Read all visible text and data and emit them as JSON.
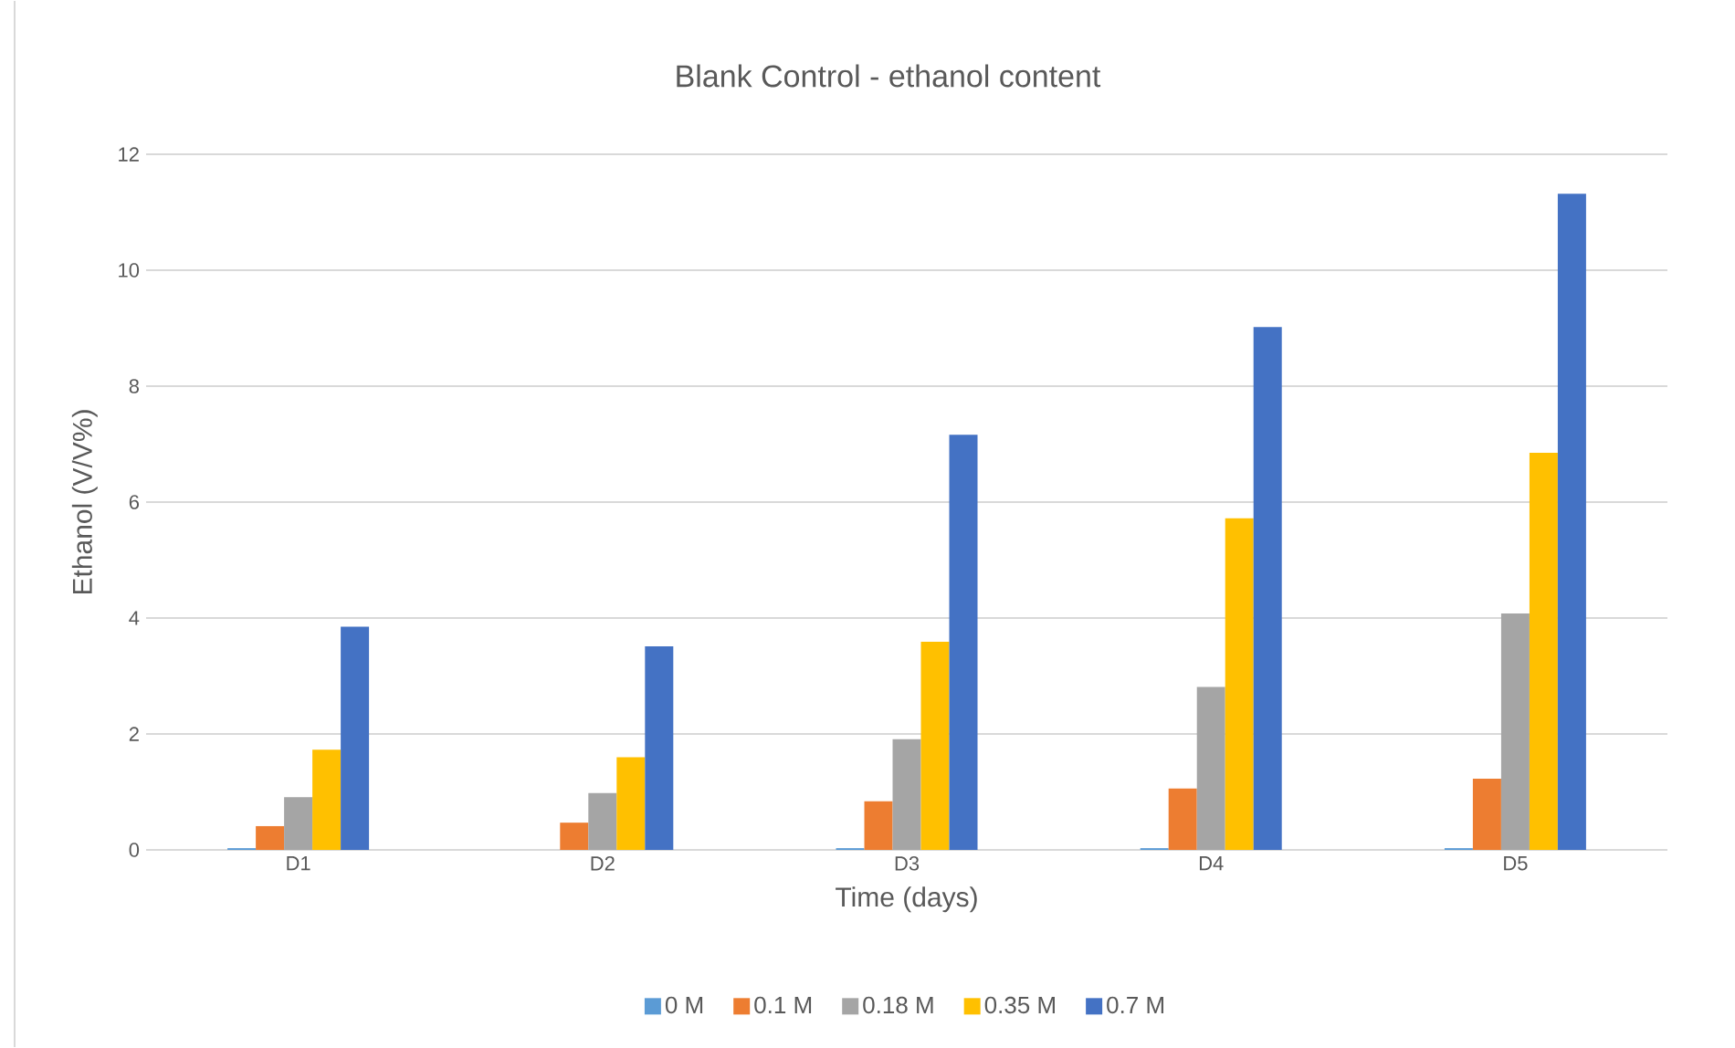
{
  "chart_data": {
    "type": "bar",
    "title": "Blank Control - ethanol content",
    "xlabel": "Time (days)",
    "ylabel": "Ethanol (V/V%)",
    "categories": [
      "D1",
      "D2",
      "D3",
      "D4",
      "D5"
    ],
    "series": [
      {
        "name": "0 M",
        "color": "#5b9bd5",
        "values": [
          0.03,
          0,
          0.03,
          0.03,
          0.03
        ]
      },
      {
        "name": "0.1 M",
        "color": "#ed7d31",
        "values": [
          0.41,
          0.47,
          0.84,
          1.06,
          1.23
        ]
      },
      {
        "name": "0.18 M",
        "color": "#a5a5a5",
        "values": [
          0.91,
          0.98,
          1.91,
          2.81,
          4.08
        ]
      },
      {
        "name": "0.35 M",
        "color": "#ffc000",
        "values": [
          1.73,
          1.6,
          3.59,
          5.72,
          6.85
        ]
      },
      {
        "name": "0.7 M",
        "color": "#4472c4",
        "values": [
          3.85,
          3.51,
          7.16,
          9.02,
          11.32
        ]
      }
    ],
    "ylim": [
      0,
      12
    ],
    "yticks": [
      0,
      2,
      4,
      6,
      8,
      10,
      12
    ],
    "grid": "y",
    "legend": "bottom"
  }
}
